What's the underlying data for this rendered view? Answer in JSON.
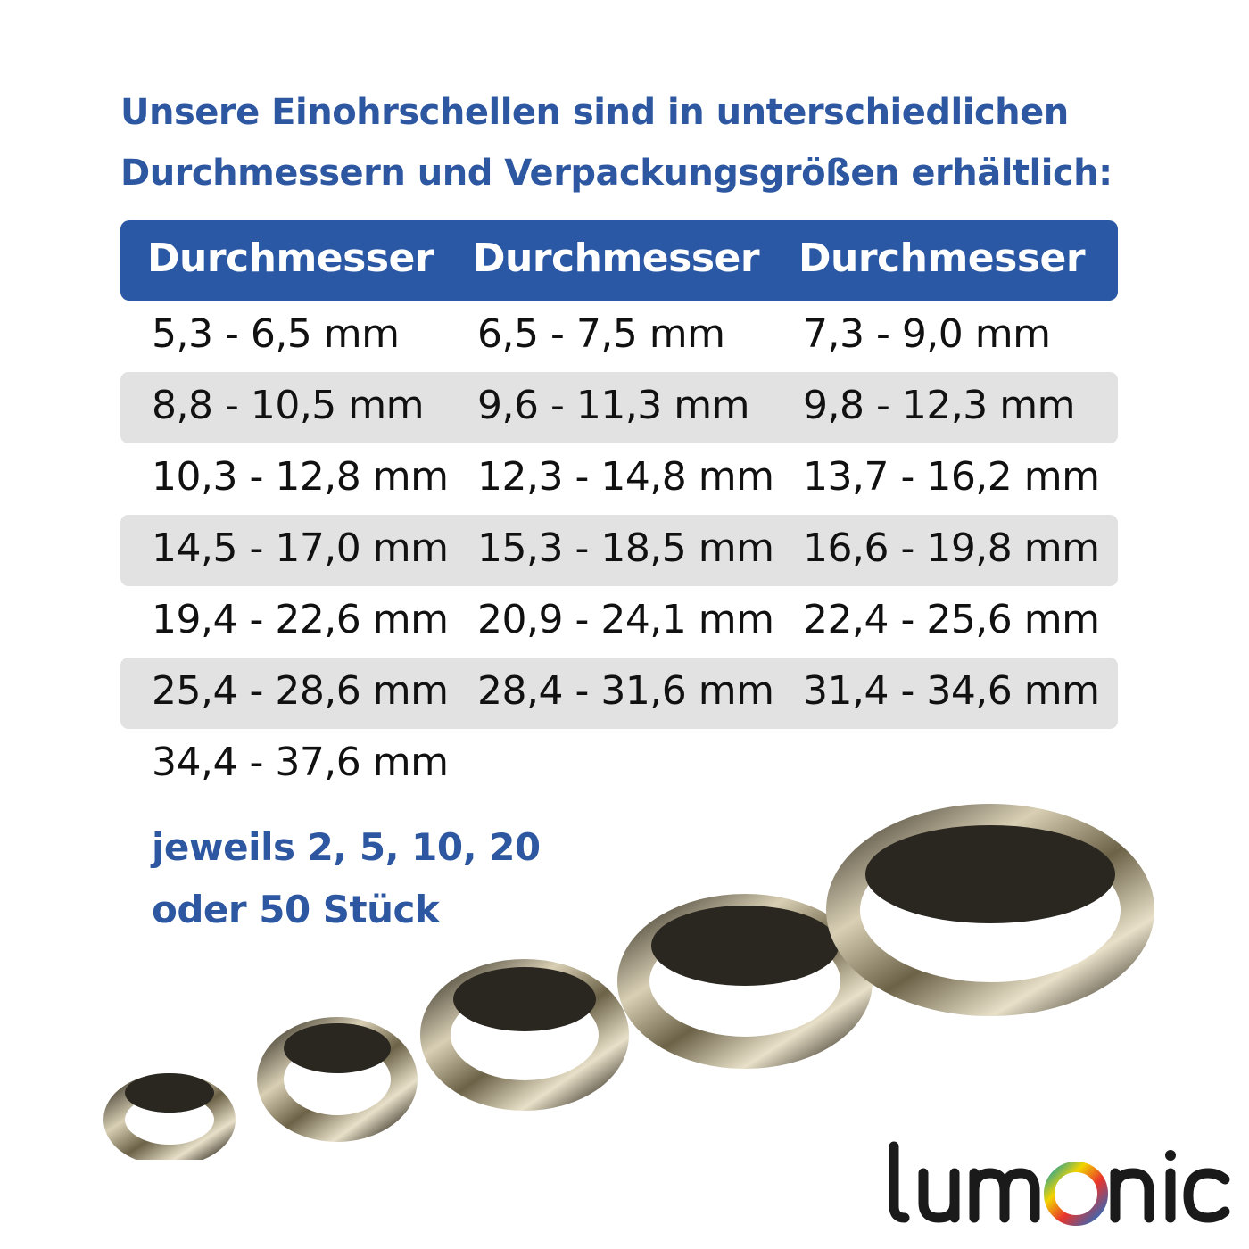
{
  "headline": [
    "Unsere Einohrschellen sind in unterschiedlichen",
    "Durchmessern und Verpackungsgrößen erhältlich:"
  ],
  "table": {
    "headers": [
      "Durchmesser",
      "Durchmesser",
      "Durchmesser"
    ],
    "rows": [
      [
        "5,3 - 6,5 mm",
        "6,5 - 7,5 mm",
        "7,3 - 9,0 mm"
      ],
      [
        "8,8 - 10,5 mm",
        "9,6 - 11,3 mm",
        "9,8 - 12,3 mm"
      ],
      [
        "10,3 - 12,8 mm",
        "12,3 - 14,8 mm",
        "13,7 - 16,2 mm"
      ],
      [
        "14,5 - 17,0 mm",
        "15,3 - 18,5 mm",
        "16,6 - 19,8 mm"
      ],
      [
        "19,4 - 22,6 mm",
        "20,9 - 24,1 mm",
        "22,4 - 25,6 mm"
      ],
      [
        "25,4 - 28,6 mm",
        "28,4 - 31,6 mm",
        "31,4 - 34,6 mm"
      ],
      [
        "34,4 - 37,6 mm",
        "",
        ""
      ]
    ]
  },
  "packaging": [
    "jeweils 2, 5, 10, 20",
    "oder 50 Stück"
  ],
  "logo": {
    "text": "lumOnic"
  },
  "colors": {
    "brand_blue": "#2b58a4",
    "row_stripe": "#e2e2e2"
  }
}
